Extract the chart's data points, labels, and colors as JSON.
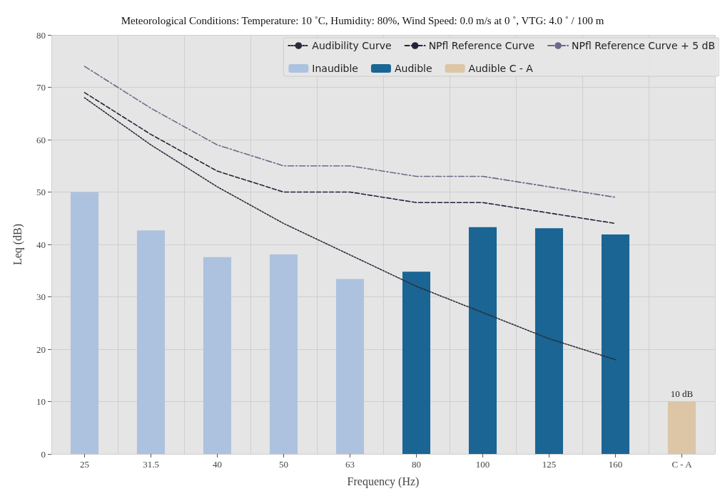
{
  "chart_data": {
    "type": "bar",
    "title": "Meteorological Conditions: Temperature: 10 ˚C, Humidity: 80%, Wind Speed: 0.0 m/s at 0 ˚, VTG: 4.0 ˚ / 100 m",
    "xlabel": "Frequency (Hz)",
    "ylabel": "Leq (dB)",
    "categories": [
      "25",
      "31.5",
      "40",
      "50",
      "63",
      "80",
      "100",
      "125",
      "160",
      "C - A"
    ],
    "series": [
      {
        "name": "Audibility Curve",
        "type": "line",
        "line_style": "dotted",
        "color": "#2b2b3b",
        "values": [
          68,
          59,
          51,
          44,
          38,
          32,
          27,
          22,
          18,
          null
        ]
      },
      {
        "name": "NPfl Reference Curve",
        "type": "line",
        "line_style": "dashed",
        "color": "#22223c",
        "values": [
          69,
          61,
          54,
          50,
          50,
          48,
          48,
          46,
          44,
          null
        ]
      },
      {
        "name": "NPfl Reference Curve + 5 dB",
        "type": "line",
        "line_style": "dashdot",
        "color": "#6b6b89",
        "values": [
          74,
          66,
          59,
          55,
          55,
          53,
          53,
          51,
          49,
          null
        ]
      },
      {
        "name": "Inaudible",
        "color": "#adc2de",
        "values": [
          50,
          42.7,
          37.6,
          38.1,
          33.4,
          null,
          null,
          null,
          null,
          null
        ]
      },
      {
        "name": "Audible",
        "color": "#1a6594",
        "values": [
          null,
          null,
          null,
          null,
          null,
          34.8,
          43.3,
          43.1,
          41.9,
          null
        ]
      },
      {
        "name": "Audible C - A",
        "color": "#dcc6a6",
        "values": [
          null,
          null,
          null,
          null,
          null,
          null,
          null,
          null,
          null,
          10
        ],
        "value_labels": [
          null,
          null,
          null,
          null,
          null,
          null,
          null,
          null,
          null,
          "10 dB"
        ]
      }
    ],
    "ylim": [
      0,
      80
    ],
    "yticks": [
      0,
      10,
      20,
      30,
      40,
      50,
      60,
      70,
      80
    ],
    "grid": true,
    "legend": "top right",
    "marker": "none"
  }
}
